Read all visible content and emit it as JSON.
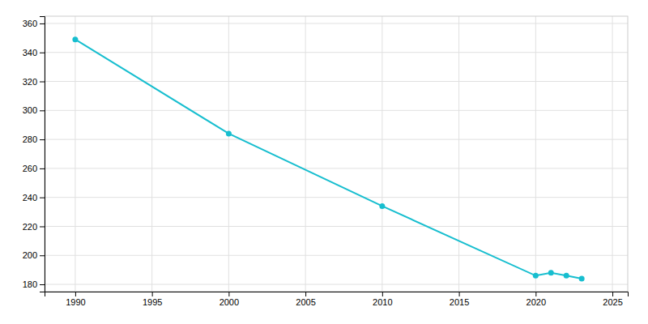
{
  "chart_data": {
    "type": "line",
    "x": [
      1990,
      2000,
      2010,
      2020,
      2021,
      2022,
      2023
    ],
    "values": [
      349,
      284,
      234,
      186,
      188,
      186,
      184
    ],
    "color": "#17BECF",
    "marker": "circle",
    "xlim": [
      1988,
      2026
    ],
    "ylim": [
      175,
      365
    ],
    "xticks": [
      1990,
      1995,
      2000,
      2005,
      2010,
      2015,
      2020,
      2025
    ],
    "yticks": [
      180,
      200,
      220,
      240,
      260,
      280,
      300,
      320,
      340,
      360
    ],
    "grid": true
  }
}
